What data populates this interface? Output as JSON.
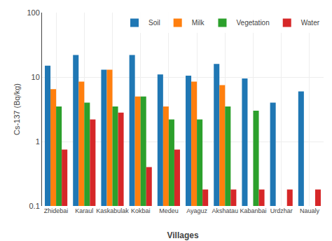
{
  "chart_data": {
    "type": "bar",
    "categories": [
      "Zhidebai",
      "Karaul",
      "Kaskabulak",
      "Kokbai",
      "Medeu",
      "Ayaguz",
      "Akshatau",
      "Kabanbai",
      "Urdzhar",
      "Naualy"
    ],
    "series": [
      {
        "name": "Soil",
        "values": [
          15.0,
          22.0,
          13.0,
          22.0,
          11.0,
          10.5,
          16.0,
          9.5,
          4.0,
          6.0
        ]
      },
      {
        "name": "Milk",
        "values": [
          6.5,
          8.5,
          13.0,
          5.0,
          3.5,
          8.5,
          7.5,
          null,
          null,
          null
        ]
      },
      {
        "name": "Vegetation",
        "values": [
          3.5,
          4.0,
          3.5,
          5.0,
          2.2,
          2.2,
          3.5,
          3.0,
          null,
          null
        ]
      },
      {
        "name": "Water",
        "values": [
          0.75,
          2.2,
          2.8,
          0.4,
          0.75,
          0.18,
          0.18,
          0.18,
          0.18,
          0.18
        ]
      }
    ],
    "xlabel": "Villages",
    "ylabel": "Cs-137 (Bq/kg)",
    "log": "y",
    "ylim": [
      0.1,
      100
    ],
    "yticks": [
      0.1,
      1,
      10,
      100
    ],
    "grid": true,
    "legend": "upper right"
  }
}
